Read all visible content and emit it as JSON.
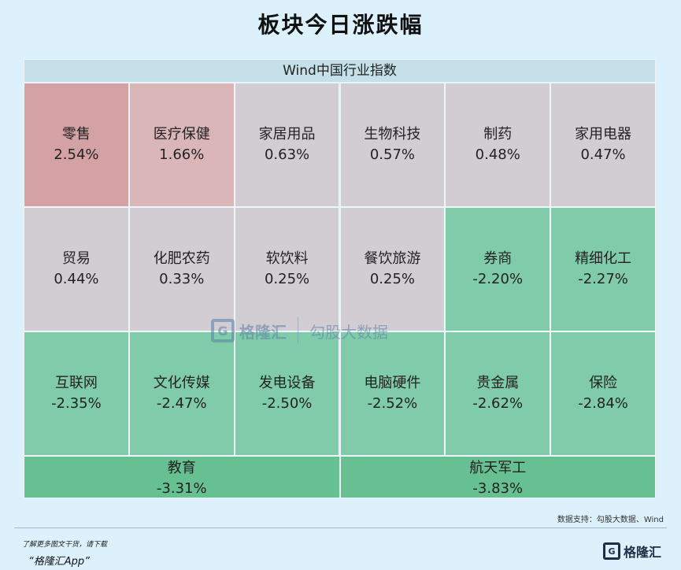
{
  "title": "板块今日涨跌幅",
  "header": "Wind中国行业指数",
  "watermark": {
    "logo_letter": "G",
    "brand": "格隆汇",
    "brand2": "勾股大数据"
  },
  "source": "数据支持：勾股大数据、Wind",
  "footer": {
    "note": "了解更多图文干货，请下载",
    "app": "“格隆汇App”",
    "logo_letter": "G",
    "logo_text": "格隆汇"
  },
  "colors": {
    "up_strong": "#d4a1a4",
    "up_mid": "#dbb6b9",
    "neutral": "#d1cdd3",
    "down": "#80cba9",
    "down_strong": "#66c091"
  },
  "chart_data": {
    "type": "heatmap",
    "title": "板块今日涨跌幅",
    "subtitle": "Wind中国行业指数",
    "unit": "%",
    "categories": [
      "零售",
      "医疗保健",
      "家居用品",
      "生物科技",
      "制药",
      "家用电器",
      "贸易",
      "化肥农药",
      "软饮料",
      "餐饮旅游",
      "券商",
      "精细化工",
      "互联网",
      "文化传媒",
      "发电设备",
      "电脑硬件",
      "贵金属",
      "保险",
      "教育",
      "航天军工"
    ],
    "values": [
      2.54,
      1.66,
      0.63,
      0.57,
      0.48,
      0.47,
      0.44,
      0.33,
      0.25,
      0.25,
      -2.2,
      -2.27,
      -2.35,
      -2.47,
      -2.5,
      -2.52,
      -2.62,
      -2.84,
      -3.31,
      -3.83
    ],
    "labels": [
      "2.54%",
      "1.66%",
      "0.63%",
      "0.57%",
      "0.48%",
      "0.47%",
      "0.44%",
      "0.33%",
      "0.25%",
      "0.25%",
      "-2.20%",
      "-2.27%",
      "-2.35%",
      "-2.47%",
      "-2.50%",
      "-2.52%",
      "-2.62%",
      "-2.84%",
      "-3.31%",
      "-3.83%"
    ]
  }
}
